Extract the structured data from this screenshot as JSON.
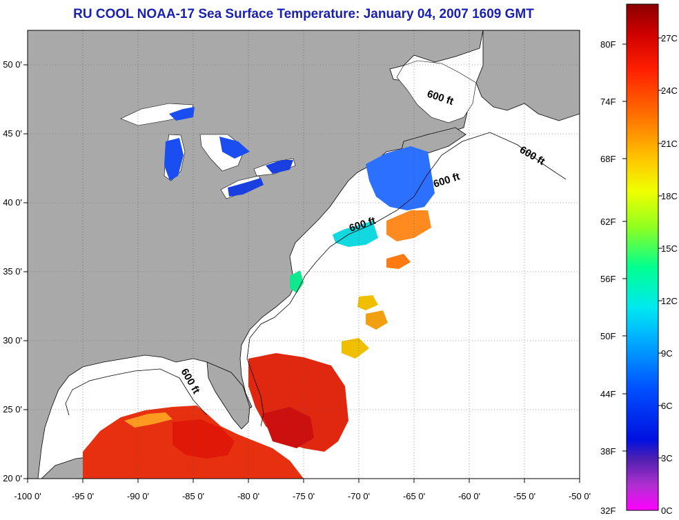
{
  "title": "RU COOL  NOAA-17  Sea Surface Temperature:  January 04, 2007 1609 GMT",
  "map": {
    "lon_range": [
      -100,
      -50
    ],
    "lat_range": [
      20,
      52.5
    ],
    "lon_ticks": [
      "-100 0'",
      "-95 0'",
      "-90 0'",
      "-85 0'",
      "-80 0'",
      "-75 0'",
      "-70 0'",
      "-65 0'",
      "-60 0'",
      "-55 0'",
      "-50 0'"
    ],
    "lat_ticks": [
      "50 0'",
      "45 0'",
      "40 0'",
      "35 0'",
      "30 0'",
      "25 0'",
      "20 0'"
    ],
    "grid": "dotted",
    "isobath_labels": [
      "600 ft",
      "600 ft",
      "600 ft",
      "600 ft",
      "600 ft"
    ],
    "colors": {
      "land": "#a9a9a9",
      "ocean_no_data": "#ffffff",
      "title": "#1a20b0"
    }
  },
  "colorbar": {
    "fahrenheit": [
      "80F",
      "74F",
      "68F",
      "62F",
      "56F",
      "50F",
      "44F",
      "38F",
      "32F"
    ],
    "celsius": [
      "27C",
      "24C",
      "21C",
      "18C",
      "15C",
      "12C",
      "9C",
      "6C",
      "3C",
      "0C"
    ],
    "range_c": [
      0,
      29
    ]
  }
}
